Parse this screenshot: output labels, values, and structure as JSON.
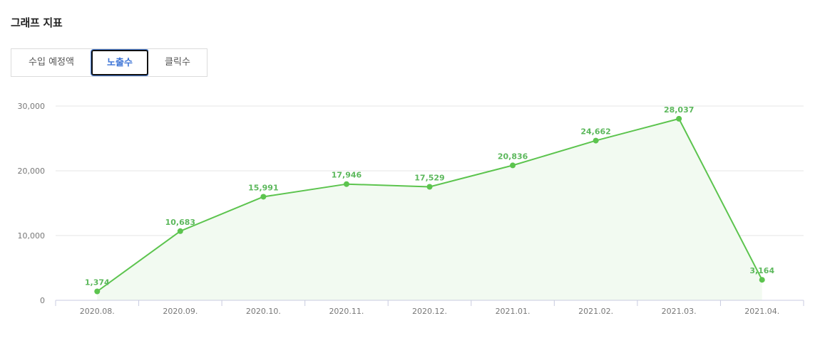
{
  "section_title": "그래프 지표",
  "tabs": [
    {
      "label": "수입 예정액"
    },
    {
      "label": "노출수"
    },
    {
      "label": "클릭수"
    }
  ],
  "colors": {
    "line": "#5cc44e",
    "area": "#f2faf1",
    "active_tab_text": "#3b73d6"
  },
  "chart_data": {
    "type": "line",
    "title": "",
    "xlabel": "",
    "ylabel": "",
    "categories": [
      "2020.08.",
      "2020.09.",
      "2020.10.",
      "2020.11.",
      "2020.12.",
      "2021.01.",
      "2021.02.",
      "2021.03.",
      "2021.04."
    ],
    "series": [
      {
        "values": [
          1374,
          10683,
          15991,
          17946,
          17529,
          20836,
          24662,
          28037,
          3164
        ],
        "labels": [
          "1,374",
          "10,683",
          "15,991",
          "17,946",
          "17,529",
          "20,836",
          "24,662",
          "28,037",
          "3,164"
        ]
      }
    ],
    "ylim": [
      0,
      30000
    ],
    "yticks": [
      0,
      10000,
      20000,
      30000
    ],
    "ytick_labels": [
      "0",
      "10,000",
      "20,000",
      "30,000"
    ],
    "grid": true,
    "area_fill": true
  }
}
